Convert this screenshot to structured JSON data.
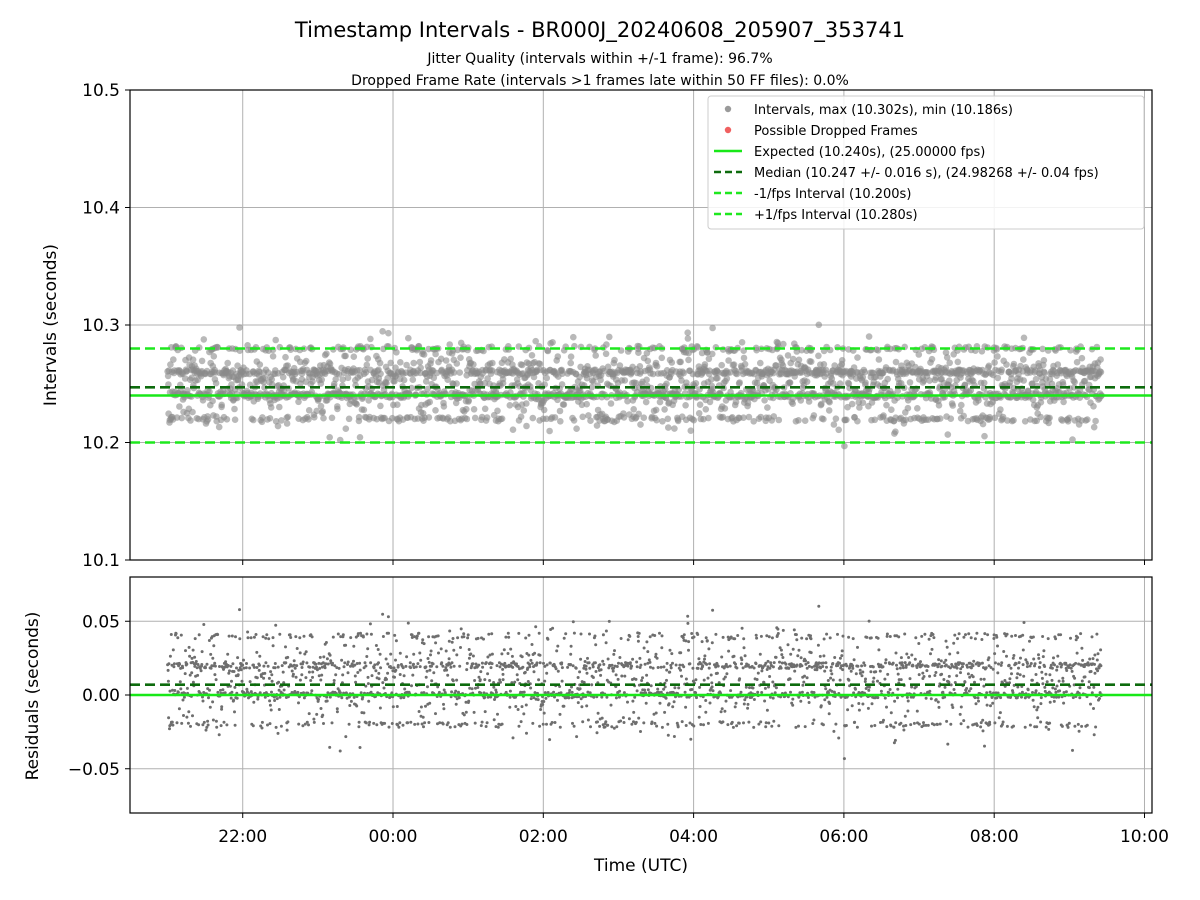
{
  "figure": {
    "title": "Timestamp Intervals - BR000J_20240608_205907_353741",
    "subtitle_1": "Jitter Quality (intervals within +/-1 frame): 96.7%",
    "subtitle_2": "Dropped Frame Rate (intervals >1 frames late within 50 FF files): 0.0%"
  },
  "chart_data": [
    {
      "type": "scatter",
      "ylabel": "Intervals (seconds)",
      "ylim": [
        10.1,
        10.5
      ],
      "xlim_hours": [
        20.5,
        34.1
      ],
      "yticks": [
        {
          "v": 10.1,
          "label": "10.1"
        },
        {
          "v": 10.2,
          "label": "10.2"
        },
        {
          "v": 10.3,
          "label": "10.3"
        },
        {
          "v": 10.4,
          "label": "10.4"
        },
        {
          "v": 10.5,
          "label": "10.5"
        }
      ],
      "x_range_hours": [
        21.0,
        33.43
      ],
      "point_count": 2600,
      "point_center": 10.25,
      "max_interval": 10.302,
      "min_interval": 10.186,
      "grid": true,
      "legend_position": "top-right",
      "hlines": [
        {
          "name": "expected",
          "y": 10.24,
          "style": "solid",
          "color": "#18e818"
        },
        {
          "name": "median",
          "y": 10.247,
          "style": "dashed",
          "color": "#0d6b0d"
        },
        {
          "name": "minus_one",
          "y": 10.2,
          "style": "dashed",
          "color": "#1ee81e"
        },
        {
          "name": "plus_one",
          "y": 10.28,
          "style": "dashed",
          "color": "#1ee81e"
        }
      ],
      "legend": [
        {
          "label": "Intervals, max (10.302s), min (10.186s)",
          "marker": "dot",
          "color": "#9a9a9a"
        },
        {
          "label": "Possible Dropped Frames",
          "marker": "dot",
          "color": "#f06060"
        },
        {
          "label": "Expected (10.240s), (25.00000 fps)",
          "marker": "solid",
          "color": "#18e818"
        },
        {
          "label": "Median (10.247 +/- 0.016 s), (24.98268 +/- 0.04 fps)",
          "marker": "dashed",
          "color": "#0d6b0d"
        },
        {
          "label": "-1/fps Interval (10.200s)",
          "marker": "dashed",
          "color": "#1ee81e"
        },
        {
          "label": "+1/fps Interval (10.280s)",
          "marker": "dashed",
          "color": "#1ee81e"
        }
      ]
    },
    {
      "type": "scatter",
      "ylabel": "Residuals (seconds)",
      "xlabel": "Time (UTC)",
      "ylim": [
        -0.08,
        0.08
      ],
      "xlim_hours": [
        20.5,
        34.1
      ],
      "yticks": [
        {
          "v": -0.05,
          "label": "−0.05"
        },
        {
          "v": 0.0,
          "label": "0.00"
        },
        {
          "v": 0.05,
          "label": "0.05"
        }
      ],
      "xticks": [
        {
          "v": 22,
          "label": "22:00"
        },
        {
          "v": 24,
          "label": "00:00"
        },
        {
          "v": 26,
          "label": "02:00"
        },
        {
          "v": 28,
          "label": "04:00"
        },
        {
          "v": 30,
          "label": "06:00"
        },
        {
          "v": 32,
          "label": "08:00"
        },
        {
          "v": 34,
          "label": "10:00"
        }
      ],
      "grid": true,
      "hlines": [
        {
          "name": "zero",
          "y": 0.0,
          "style": "solid",
          "color": "#18e818"
        },
        {
          "name": "median_offset",
          "y": 0.007,
          "style": "dashed",
          "color": "#0d6b0d"
        }
      ]
    }
  ]
}
